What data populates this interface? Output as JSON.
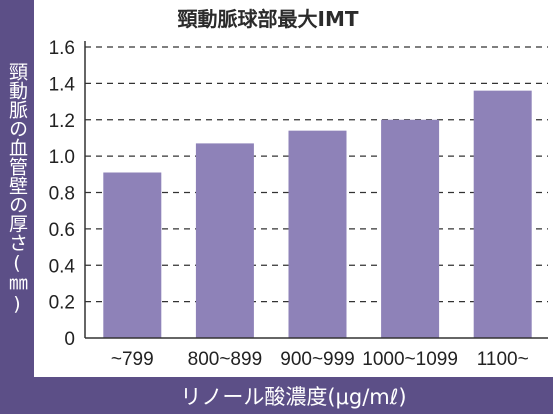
{
  "chart_data": {
    "type": "bar",
    "title": "頸動脈球部最大IMT",
    "xlabel": "リノール酸濃度(μg/mℓ)",
    "ylabel": "頸動脈の血管壁の厚さ(㎜)",
    "categories": [
      "~799",
      "800~899",
      "900~999",
      "1000~1099",
      "1100~"
    ],
    "values": [
      0.91,
      1.07,
      1.14,
      1.2,
      1.36
    ],
    "yticks": [
      "0",
      "0.2",
      "0.4",
      "0.6",
      "0.8",
      "1.0",
      "1.2",
      "1.4",
      "1.6"
    ],
    "ylim": [
      0,
      1.6
    ],
    "grid": "horizontal-dashed",
    "colors": {
      "bar": "#8e82b8",
      "frame": "#5c4f87",
      "grid": "#333333",
      "text": "#222222"
    }
  }
}
